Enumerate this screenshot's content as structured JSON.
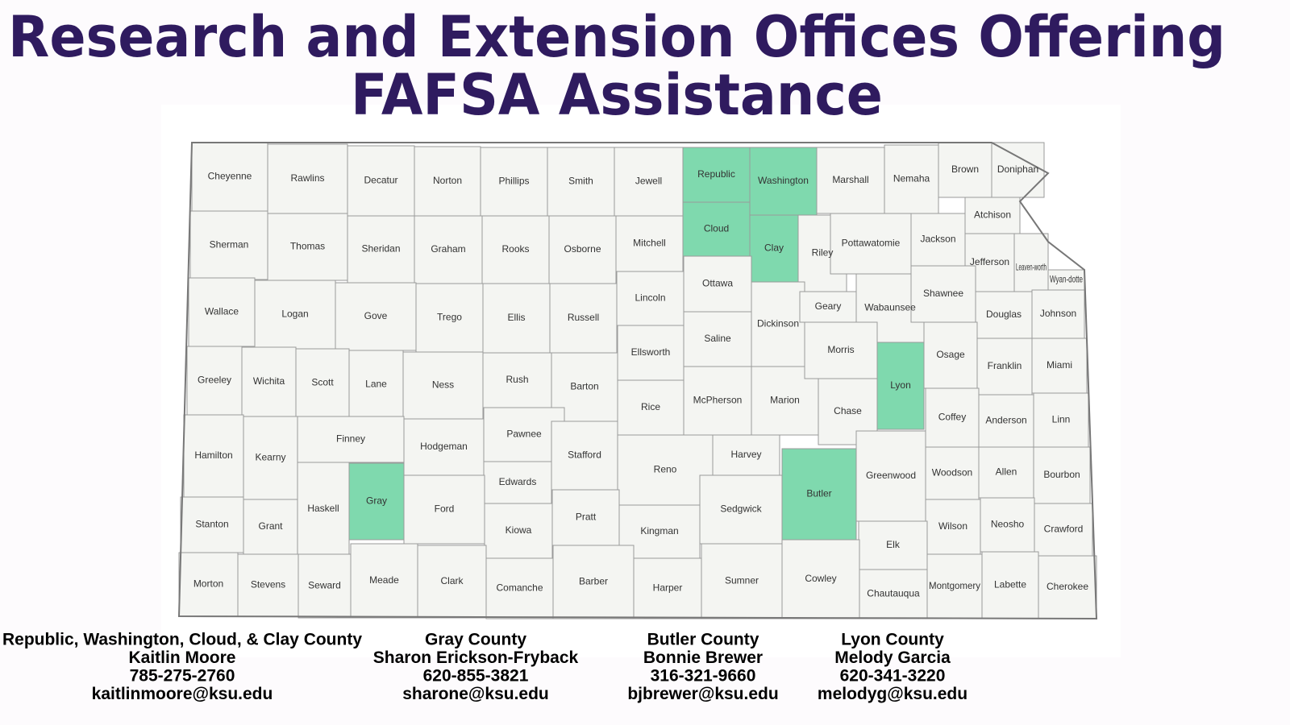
{
  "header": {
    "title_lines": [
      "Research and Extension Offices Offering",
      "FAFSA Assistance"
    ]
  },
  "map": {
    "highlight_color": "#7fd9ae",
    "base_color": "#f4f5f2",
    "counties": [
      {
        "name": "Cheyenne",
        "highlighted": false
      },
      {
        "name": "Rawlins",
        "highlighted": false
      },
      {
        "name": "Decatur",
        "highlighted": false
      },
      {
        "name": "Norton",
        "highlighted": false
      },
      {
        "name": "Phillips",
        "highlighted": false
      },
      {
        "name": "Smith",
        "highlighted": false
      },
      {
        "name": "Jewell",
        "highlighted": false
      },
      {
        "name": "Republic",
        "highlighted": true
      },
      {
        "name": "Washington",
        "highlighted": true
      },
      {
        "name": "Marshall",
        "highlighted": false
      },
      {
        "name": "Nemaha",
        "highlighted": false
      },
      {
        "name": "Brown",
        "highlighted": false
      },
      {
        "name": "Doniphan",
        "highlighted": false
      },
      {
        "name": "Sherman",
        "highlighted": false
      },
      {
        "name": "Thomas",
        "highlighted": false
      },
      {
        "name": "Sheridan",
        "highlighted": false
      },
      {
        "name": "Graham",
        "highlighted": false
      },
      {
        "name": "Rooks",
        "highlighted": false
      },
      {
        "name": "Osborne",
        "highlighted": false
      },
      {
        "name": "Mitchell",
        "highlighted": false
      },
      {
        "name": "Cloud",
        "highlighted": true
      },
      {
        "name": "Clay",
        "highlighted": true
      },
      {
        "name": "Riley",
        "highlighted": false
      },
      {
        "name": "Pottawatomie",
        "highlighted": false
      },
      {
        "name": "Jackson",
        "highlighted": false
      },
      {
        "name": "Atchison",
        "highlighted": false
      },
      {
        "name": "Jefferson",
        "highlighted": false
      },
      {
        "name": "Leaven-worth",
        "highlighted": false
      },
      {
        "name": "Wyan-dotte",
        "highlighted": false
      },
      {
        "name": "Wallace",
        "highlighted": false
      },
      {
        "name": "Logan",
        "highlighted": false
      },
      {
        "name": "Gove",
        "highlighted": false
      },
      {
        "name": "Trego",
        "highlighted": false
      },
      {
        "name": "Ellis",
        "highlighted": false
      },
      {
        "name": "Russell",
        "highlighted": false
      },
      {
        "name": "Lincoln",
        "highlighted": false
      },
      {
        "name": "Ottawa",
        "highlighted": false
      },
      {
        "name": "Saline",
        "highlighted": false
      },
      {
        "name": "Dickinson",
        "highlighted": false
      },
      {
        "name": "Geary",
        "highlighted": false
      },
      {
        "name": "Wabaunsee",
        "highlighted": false
      },
      {
        "name": "Shawnee",
        "highlighted": false
      },
      {
        "name": "Douglas",
        "highlighted": false
      },
      {
        "name": "Johnson",
        "highlighted": false
      },
      {
        "name": "Greeley",
        "highlighted": false
      },
      {
        "name": "Wichita",
        "highlighted": false
      },
      {
        "name": "Scott",
        "highlighted": false
      },
      {
        "name": "Lane",
        "highlighted": false
      },
      {
        "name": "Ness",
        "highlighted": false
      },
      {
        "name": "Rush",
        "highlighted": false
      },
      {
        "name": "Barton",
        "highlighted": false
      },
      {
        "name": "Ellsworth",
        "highlighted": false
      },
      {
        "name": "Rice",
        "highlighted": false
      },
      {
        "name": "McPherson",
        "highlighted": false
      },
      {
        "name": "Marion",
        "highlighted": false
      },
      {
        "name": "Morris",
        "highlighted": false
      },
      {
        "name": "Chase",
        "highlighted": false
      },
      {
        "name": "Lyon",
        "highlighted": true
      },
      {
        "name": "Osage",
        "highlighted": false
      },
      {
        "name": "Franklin",
        "highlighted": false
      },
      {
        "name": "Miami",
        "highlighted": false
      },
      {
        "name": "Hamilton",
        "highlighted": false
      },
      {
        "name": "Kearny",
        "highlighted": false
      },
      {
        "name": "Finney",
        "highlighted": false
      },
      {
        "name": "Hodgeman",
        "highlighted": false
      },
      {
        "name": "Pawnee",
        "highlighted": false
      },
      {
        "name": "Edwards",
        "highlighted": false
      },
      {
        "name": "Stafford",
        "highlighted": false
      },
      {
        "name": "Reno",
        "highlighted": false
      },
      {
        "name": "Harvey",
        "highlighted": false
      },
      {
        "name": "Sedgwick",
        "highlighted": false
      },
      {
        "name": "Butler",
        "highlighted": true
      },
      {
        "name": "Greenwood",
        "highlighted": false
      },
      {
        "name": "Coffey",
        "highlighted": false
      },
      {
        "name": "Anderson",
        "highlighted": false
      },
      {
        "name": "Linn",
        "highlighted": false
      },
      {
        "name": "Gray",
        "highlighted": true
      },
      {
        "name": "Ford",
        "highlighted": false
      },
      {
        "name": "Kiowa",
        "highlighted": false
      },
      {
        "name": "Pratt",
        "highlighted": false
      },
      {
        "name": "Kingman",
        "highlighted": false
      },
      {
        "name": "Woodson",
        "highlighted": false
      },
      {
        "name": "Allen",
        "highlighted": false
      },
      {
        "name": "Bourbon",
        "highlighted": false
      },
      {
        "name": "Wilson",
        "highlighted": false
      },
      {
        "name": "Neosho",
        "highlighted": false
      },
      {
        "name": "Crawford",
        "highlighted": false
      },
      {
        "name": "Elk",
        "highlighted": false
      },
      {
        "name": "Stanton",
        "highlighted": false
      },
      {
        "name": "Grant",
        "highlighted": false
      },
      {
        "name": "Haskell",
        "highlighted": false
      },
      {
        "name": "Morton",
        "highlighted": false
      },
      {
        "name": "Stevens",
        "highlighted": false
      },
      {
        "name": "Seward",
        "highlighted": false
      },
      {
        "name": "Meade",
        "highlighted": false
      },
      {
        "name": "Clark",
        "highlighted": false
      },
      {
        "name": "Comanche",
        "highlighted": false
      },
      {
        "name": "Barber",
        "highlighted": false
      },
      {
        "name": "Harper",
        "highlighted": false
      },
      {
        "name": "Sumner",
        "highlighted": false
      },
      {
        "name": "Cowley",
        "highlighted": false
      },
      {
        "name": "Chautauqua",
        "highlighted": false
      },
      {
        "name": "Montgomery",
        "highlighted": false
      },
      {
        "name": "Labette",
        "highlighted": false
      },
      {
        "name": "Cherokee",
        "highlighted": false
      }
    ]
  },
  "contacts": [
    {
      "area": "Republic, Washington, Cloud, & Clay County",
      "name": "Kaitlin Moore",
      "phone": "785-275-2760",
      "email": "kaitlinmoore@ksu.edu"
    },
    {
      "area": "Gray County",
      "name": "Sharon Erickson-Fryback",
      "phone": "620-855-3821",
      "email": "sharone@ksu.edu"
    },
    {
      "area": "Butler County",
      "name": "Bonnie Brewer",
      "phone": "316-321-9660",
      "email": "bjbrewer@ksu.edu"
    },
    {
      "area": "Lyon County",
      "name": "Melody Garcia",
      "phone": "620-341-3220",
      "email": "melodyg@ksu.edu"
    }
  ]
}
